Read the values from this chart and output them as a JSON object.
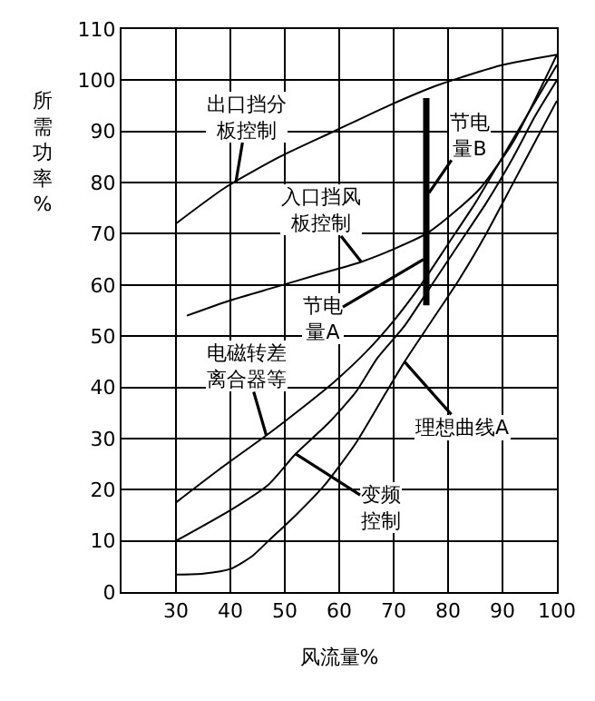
{
  "chart_data": {
    "type": "line",
    "xlabel": "风流量%",
    "ylabel": "所需功率%",
    "series": [
      {
        "color": "#000000",
        "x": [
          30,
          39,
          49,
          59,
          69,
          78,
          90,
          100
        ],
        "values": [
          72,
          79,
          85,
          90,
          95,
          99,
          103,
          105
        ]
      },
      {
        "color": "#000000",
        "x": [
          32,
          40,
          48,
          56,
          64,
          70,
          76,
          82,
          86,
          92,
          100
        ],
        "values": [
          54,
          57,
          59.5,
          62,
          64.5,
          67,
          70,
          75,
          79,
          88,
          105
        ]
      },
      {
        "color": "#000000",
        "x": [
          30,
          38,
          46.6,
          52,
          59,
          65,
          70,
          75,
          80,
          85,
          90,
          95,
          100
        ],
        "values": [
          17.5,
          24,
          30.6,
          35,
          41,
          47,
          53,
          60,
          68,
          76,
          85,
          94,
          103
        ]
      },
      {
        "color": "#000000",
        "x": [
          30,
          40,
          47,
          52,
          58,
          63,
          67,
          72,
          77,
          82,
          87,
          92,
          96,
          100
        ],
        "values": [
          10,
          16,
          21,
          27,
          33,
          39,
          45.7,
          52,
          60,
          68,
          76,
          85,
          93,
          100
        ]
      },
      {
        "color": "#000000",
        "x": [
          30,
          35,
          40,
          44,
          47,
          52,
          57.4,
          63,
          68.5,
          72,
          77,
          82,
          87,
          92,
          96,
          100
        ],
        "values": [
          3.4,
          3.6,
          4.5,
          7,
          10,
          15,
          21,
          29,
          38.8,
          45,
          53,
          61,
          70,
          80,
          88,
          96
        ]
      },
      {
        "color": "#000000",
        "x": [
          76,
          76
        ],
        "values": [
          56,
          96.5
        ]
      }
    ],
    "annotations": [
      {
        "text": "出口挡分板控制",
        "x": 41,
        "y": 80
      },
      {
        "text": "入口挡风板控制",
        "x": 64,
        "y": 64.6
      },
      {
        "text": "节电量B",
        "x": 76.5,
        "y": 78
      },
      {
        "text": "节电量A",
        "x": 75.5,
        "y": 65
      },
      {
        "text": "电磁转差离合器等",
        "x": 46.6,
        "y": 30.6
      },
      {
        "text": "变频控制",
        "x": 52,
        "y": 27
      },
      {
        "text": "理想曲线A",
        "x": 72,
        "y": 45
      }
    ],
    "xlim": [
      20,
      100
    ],
    "xticks": [
      30,
      40,
      50,
      60,
      70,
      80,
      90,
      100
    ],
    "ylim": [
      0,
      110
    ],
    "yticks": [
      0,
      10,
      20,
      30,
      40,
      50,
      60,
      70,
      80,
      90,
      100,
      110
    ],
    "grid": true,
    "marker": "none",
    "line_style": "solid"
  }
}
